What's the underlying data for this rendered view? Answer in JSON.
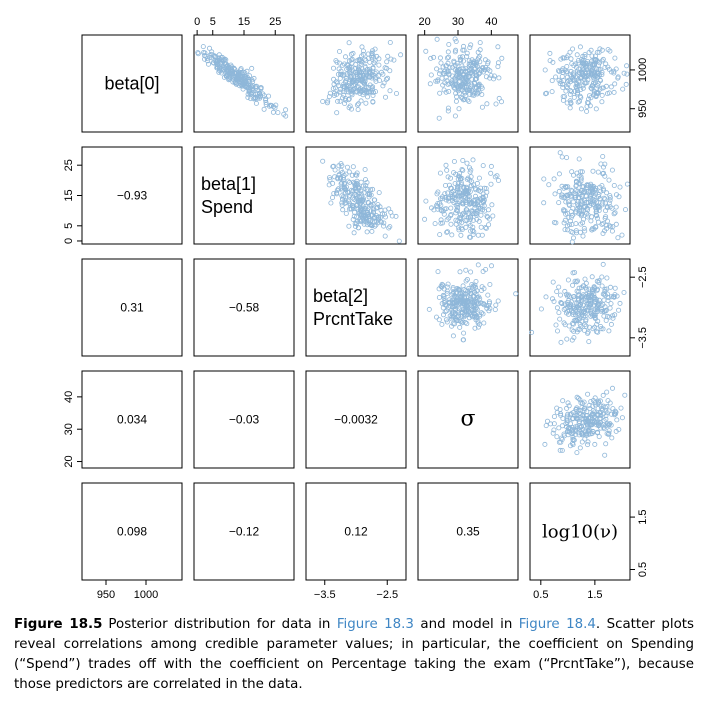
{
  "chart_data": {
    "type": "scatter-matrix",
    "variables": [
      {
        "key": "beta0",
        "label_lines": [
          "beta[0]"
        ],
        "range": [
          920,
          1045
        ]
      },
      {
        "key": "beta1",
        "label_lines": [
          "beta[1]",
          "Spend"
        ],
        "range": [
          -1,
          31
        ]
      },
      {
        "key": "beta2",
        "label_lines": [
          "beta[2]",
          "PrcntTake"
        ],
        "range": [
          -3.8,
          -2.2
        ]
      },
      {
        "key": "sigma",
        "label_lines": [
          "σ"
        ],
        "range": [
          18,
          48
        ]
      },
      {
        "key": "log10_nu",
        "label_lines": [
          "log10(ν)"
        ],
        "range": [
          0.3,
          2.15
        ]
      }
    ],
    "axis_ticks": {
      "beta0": {
        "side": "bottom",
        "values": [
          950,
          1000
        ],
        "labels": [
          "950",
          "1000"
        ]
      },
      "beta1": {
        "side": "top",
        "values": [
          0,
          5,
          15,
          25
        ],
        "labels": [
          "0",
          "5",
          "15",
          "25"
        ]
      },
      "beta2": {
        "side": "bottom",
        "values": [
          -3.5,
          -2.5
        ],
        "labels": [
          "−3.5",
          "−2.5"
        ]
      },
      "sigma": {
        "side": "top",
        "values": [
          20,
          30,
          40
        ],
        "labels": [
          "20",
          "30",
          "40"
        ]
      },
      "log10_nu": {
        "side": "bottom",
        "values": [
          0.5,
          1.5
        ],
        "labels": [
          "0.5",
          "1.5"
        ]
      }
    },
    "row_ticks": {
      "beta0": {
        "side": "right",
        "values": [
          950,
          1000
        ],
        "labels": [
          "950",
          "1000"
        ]
      },
      "beta1": {
        "side": "left",
        "values": [
          0,
          5,
          15,
          25
        ],
        "labels": [
          "0",
          "5",
          "15",
          "25"
        ]
      },
      "beta2": {
        "side": "right",
        "values": [
          -3.5,
          -2.5
        ],
        "labels": [
          "−3.5",
          "−2.5"
        ]
      },
      "sigma": {
        "side": "left",
        "values": [
          20,
          30,
          40
        ],
        "labels": [
          "20",
          "30",
          "40"
        ]
      },
      "log10_nu": {
        "side": "right",
        "values": [
          0.5,
          1.5
        ],
        "labels": [
          "0.5",
          "1.5"
        ]
      }
    },
    "correlations": [
      {
        "row": "beta1",
        "col": "beta0",
        "value": -0.93,
        "label": "−0.93"
      },
      {
        "row": "beta2",
        "col": "beta0",
        "value": 0.31,
        "label": "0.31"
      },
      {
        "row": "beta2",
        "col": "beta1",
        "value": -0.58,
        "label": "−0.58"
      },
      {
        "row": "sigma",
        "col": "beta0",
        "value": 0.034,
        "label": "0.034"
      },
      {
        "row": "sigma",
        "col": "beta1",
        "value": -0.03,
        "label": "−0.03"
      },
      {
        "row": "sigma",
        "col": "beta2",
        "value": -0.0032,
        "label": "−0.0032"
      },
      {
        "row": "log10_nu",
        "col": "beta0",
        "value": 0.098,
        "label": "0.098"
      },
      {
        "row": "log10_nu",
        "col": "beta1",
        "value": -0.12,
        "label": "−0.12"
      },
      {
        "row": "log10_nu",
        "col": "beta2",
        "value": 0.12,
        "label": "0.12"
      },
      {
        "row": "log10_nu",
        "col": "sigma",
        "value": 0.35,
        "label": "0.35"
      }
    ],
    "marginals": {
      "beta0": {
        "mean": 990,
        "sd": 18
      },
      "beta1": {
        "mean": 13,
        "sd": 5.5
      },
      "beta2": {
        "mean": -2.95,
        "sd": 0.22
      },
      "sigma": {
        "mean": 32,
        "sd": 4
      },
      "log10_nu": {
        "mean": 1.35,
        "sd": 0.3
      }
    },
    "grid": false,
    "point_color": "#8fb7d9"
  },
  "caption": {
    "lead": "Figure 18.5",
    "segments": [
      {
        "text": "Posterior distribution for data in ",
        "link": false
      },
      {
        "text": "Figure 18.3",
        "link": true
      },
      {
        "text": " and model in ",
        "link": false
      },
      {
        "text": "Figure 18.4",
        "link": true
      },
      {
        "text": ". Scatter plots reveal correlations among credible parameter values; in particular, the coefficient on Spending (“Spend”) trades off with the coefficient on Percentage taking the exam (“PrcntTake”), because those predictors are correlated in the data.",
        "link": false
      }
    ]
  },
  "colors": {
    "points": "#8fb7d9",
    "link": "#3f86c4",
    "frame": "#000000"
  }
}
